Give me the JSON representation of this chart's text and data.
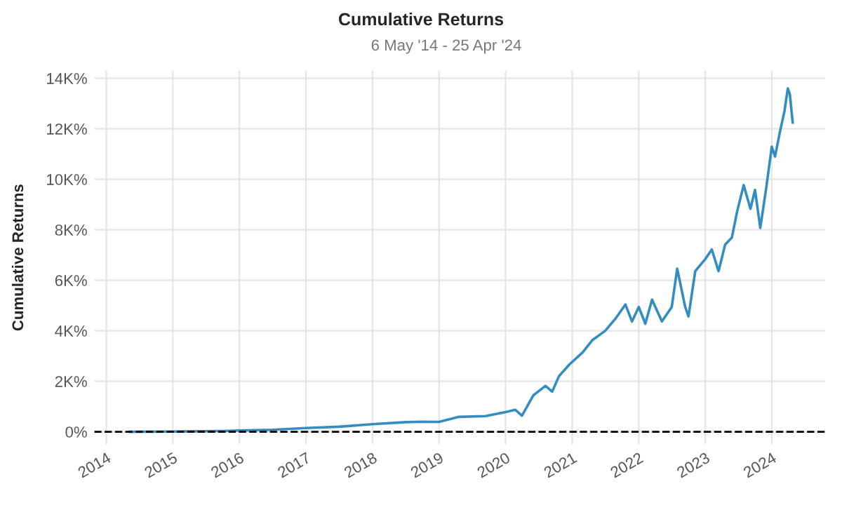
{
  "chart_data": {
    "type": "line",
    "title": "Cumulative Returns",
    "subtitle": "6 May '14 - 25 Apr '24",
    "ylabel": "Cumulative Returns",
    "x": [
      "2014-05-06",
      "2015-01-01",
      "2015-10-01",
      "2016-01-01",
      "2016-07-01",
      "2017-01-01",
      "2017-07-01",
      "2018-01-01",
      "2018-07-01",
      "2018-09-27",
      "2019-01-01",
      "2019-04-20",
      "2019-09-13",
      "2020-01-01",
      "2020-02-24",
      "2020-03-31",
      "2020-06-01",
      "2020-08-07",
      "2020-09-13",
      "2020-10-20",
      "2020-12-17",
      "2021-02-28",
      "2021-04-20",
      "2021-07-01",
      "2021-08-25",
      "2021-10-20",
      "2021-11-25",
      "2022-01-01",
      "2022-02-06",
      "2022-03-15",
      "2022-05-08",
      "2022-07-01",
      "2022-07-31",
      "2022-09-13",
      "2022-10-01",
      "2022-11-07",
      "2023-01-01",
      "2023-02-06",
      "2023-03-15",
      "2023-04-20",
      "2023-05-27",
      "2023-06-25",
      "2023-07-31",
      "2023-09-06",
      "2023-10-01",
      "2023-10-30",
      "2023-12-02",
      "2024-01-01",
      "2024-01-19",
      "2024-02-14",
      "2024-03-11",
      "2024-03-29",
      "2024-04-09",
      "2024-04-25"
    ],
    "series": [
      {
        "color": "#348dc1",
        "values": [
          0,
          10,
          30,
          50,
          80,
          150,
          200,
          300,
          380,
          400,
          390,
          590,
          620,
          780,
          870,
          640,
          1440,
          1820,
          1590,
          2200,
          2670,
          3150,
          3620,
          4000,
          4470,
          5040,
          4370,
          4940,
          4280,
          5230,
          4370,
          4940,
          6460,
          4940,
          4570,
          6360,
          6840,
          7220,
          6360,
          7410,
          7690,
          8730,
          9770,
          8830,
          9580,
          8070,
          9680,
          11290,
          10900,
          11850,
          12710,
          13600,
          13370,
          12240
        ]
      }
    ],
    "xlim": [
      "2013-10-27",
      "2024-10-20"
    ],
    "xticks": [
      {
        "value": "2014",
        "label": "2014"
      },
      {
        "value": "2015",
        "label": "2015"
      },
      {
        "value": "2016",
        "label": "2016"
      },
      {
        "value": "2017",
        "label": "2017"
      },
      {
        "value": "2018",
        "label": "2018"
      },
      {
        "value": "2019",
        "label": "2019"
      },
      {
        "value": "2020",
        "label": "2020"
      },
      {
        "value": "2021",
        "label": "2021"
      },
      {
        "value": "2022",
        "label": "2022"
      },
      {
        "value": "2023",
        "label": "2023"
      },
      {
        "value": "2024",
        "label": "2024"
      }
    ],
    "ylim": [
      -500,
      14300
    ],
    "yticks": [
      {
        "value": 0,
        "label": "0%"
      },
      {
        "value": 2000,
        "label": "2K%"
      },
      {
        "value": 4000,
        "label": "4K%"
      },
      {
        "value": 6000,
        "label": "6K%"
      },
      {
        "value": 8000,
        "label": "8K%"
      },
      {
        "value": 10000,
        "label": "10K%"
      },
      {
        "value": 12000,
        "label": "12K%"
      },
      {
        "value": 14000,
        "label": "14K%"
      }
    ],
    "ref_lines": [
      {
        "axis": "y",
        "value": 0,
        "color": "#000000",
        "line_style": "dashed"
      }
    ],
    "grid": true,
    "line_style": "solid",
    "marker": "none"
  }
}
